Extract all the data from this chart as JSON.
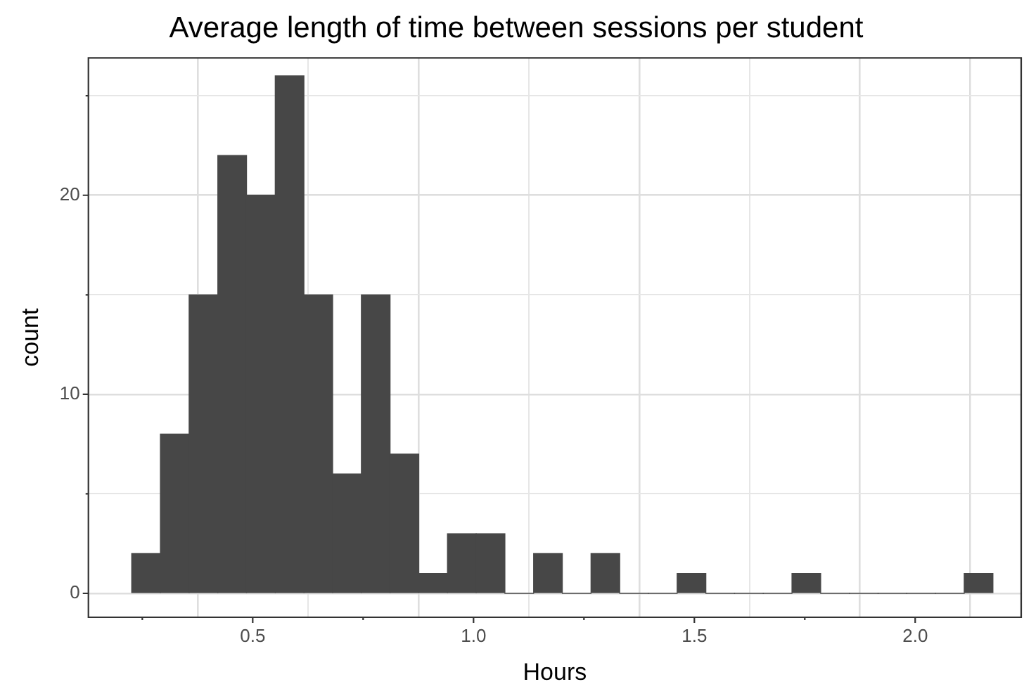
{
  "chart_data": {
    "type": "histogram",
    "title": "Average length of time between sessions per student",
    "xlabel": "Hours",
    "ylabel": "count",
    "color": "#474747",
    "bins": [
      0.226,
      0.291,
      0.356,
      0.421,
      0.486,
      0.551,
      0.616,
      0.681,
      0.746,
      0.811,
      0.876,
      0.941,
      1.006,
      1.071,
      1.136,
      1.201,
      1.266,
      1.331,
      1.396,
      1.461,
      1.526,
      1.591,
      1.656,
      1.721,
      1.786,
      1.851,
      1.916,
      1.981,
      2.046,
      2.111,
      2.176
    ],
    "values": [
      2,
      8,
      15,
      22,
      20,
      26,
      15,
      6,
      15,
      7,
      1,
      3,
      3,
      0,
      2,
      0,
      2,
      0,
      0,
      1,
      0,
      0,
      0,
      1,
      0,
      0,
      0,
      0,
      0,
      1
    ],
    "xlim": [
      0.128,
      2.24
    ],
    "xticks": [
      {
        "value": 0.25,
        "label": null
      },
      0.5,
      {
        "value": 0.75,
        "label": null
      },
      "1.0",
      {
        "value": 1.25,
        "label": null
      },
      1.5,
      {
        "value": 1.75,
        "label": null
      },
      "2.0"
    ],
    "ylim": [
      -1.2,
      26.9
    ],
    "yticks": [
      0,
      {
        "value": 5,
        "label": null
      },
      10,
      {
        "value": 15,
        "label": null
      },
      20,
      {
        "value": 25,
        "label": null
      }
    ],
    "grid": true,
    "legend": false
  }
}
